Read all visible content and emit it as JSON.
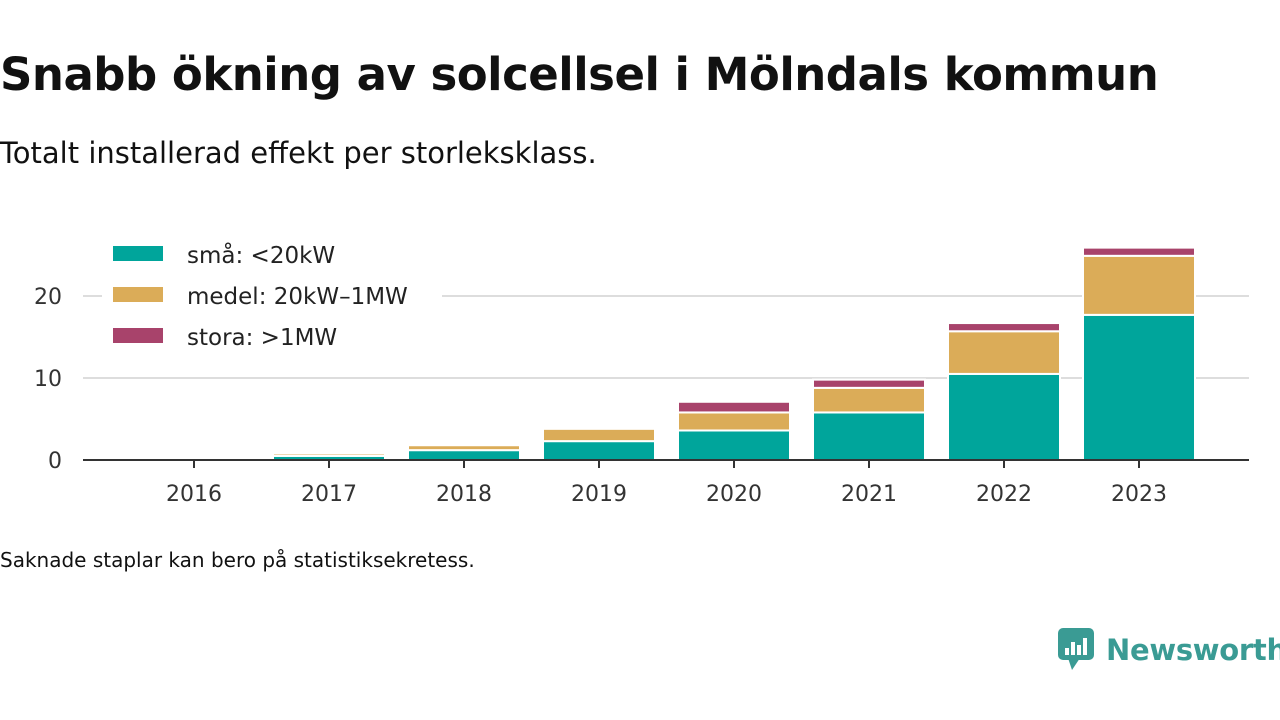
{
  "title": "Snabb ökning av solcellsel i Mölndals kommun",
  "subtitle": "Totalt installerad effekt per storleksklass.",
  "footnote": "Saknade staplar kan bero på statistiksekretess.",
  "brand": {
    "name": "Newsworthy",
    "color": "#3a9b94",
    "icon": "newsworthy-logo-icon"
  },
  "chart_data": {
    "type": "bar",
    "stacked": true,
    "categories": [
      "2016",
      "2017",
      "2018",
      "2019",
      "2020",
      "2021",
      "2022",
      "2023"
    ],
    "series": [
      {
        "name": "små: <20kW",
        "color": "#00a59b",
        "values": [
          0.1,
          0.5,
          1.2,
          2.3,
          3.6,
          5.8,
          10.5,
          17.7
        ]
      },
      {
        "name": "medel: 20kW–1MW",
        "color": "#dbac58",
        "values": [
          0.0,
          0.3,
          0.6,
          1.5,
          2.2,
          3.0,
          5.2,
          7.2
        ]
      },
      {
        "name": "stora: >1MW",
        "color": "#a8436b",
        "values": [
          0.0,
          0.0,
          0.0,
          0.0,
          1.3,
          1.0,
          1.0,
          1.0
        ]
      }
    ],
    "y_ticks": [
      0,
      10,
      20
    ],
    "ylim": [
      0,
      26.5
    ],
    "grid": true,
    "legend_position": "top-left"
  }
}
